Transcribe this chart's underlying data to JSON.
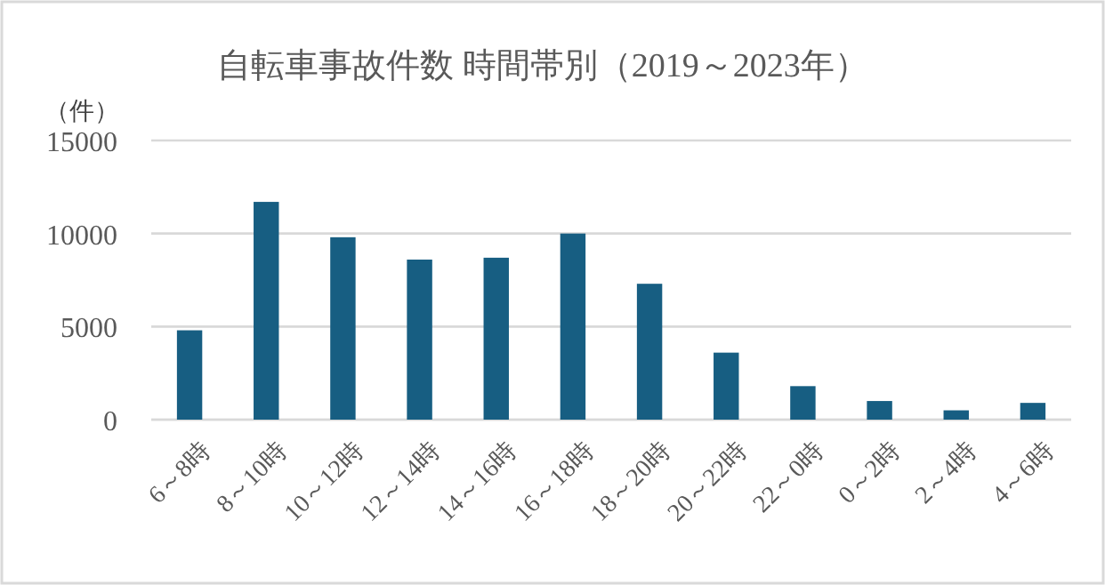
{
  "chart_data": {
    "type": "bar",
    "title": "自転車事故件数 時間帯別（2019～2023年）",
    "ylabel": "（件）",
    "categories": [
      "6～8時",
      "8～10時",
      "10～12時",
      "12～14時",
      "14～16時",
      "16～18時",
      "18～20時",
      "20～22時",
      "22～0時",
      "0～2時",
      "2～4時",
      "4～6時"
    ],
    "values": [
      4800,
      11700,
      9800,
      8600,
      8700,
      10000,
      7300,
      3600,
      1800,
      1000,
      500,
      900
    ],
    "color": "#175e82",
    "ylim": [
      0,
      15000
    ],
    "yticks": [
      0,
      5000,
      10000,
      15000
    ],
    "grid": "y"
  }
}
